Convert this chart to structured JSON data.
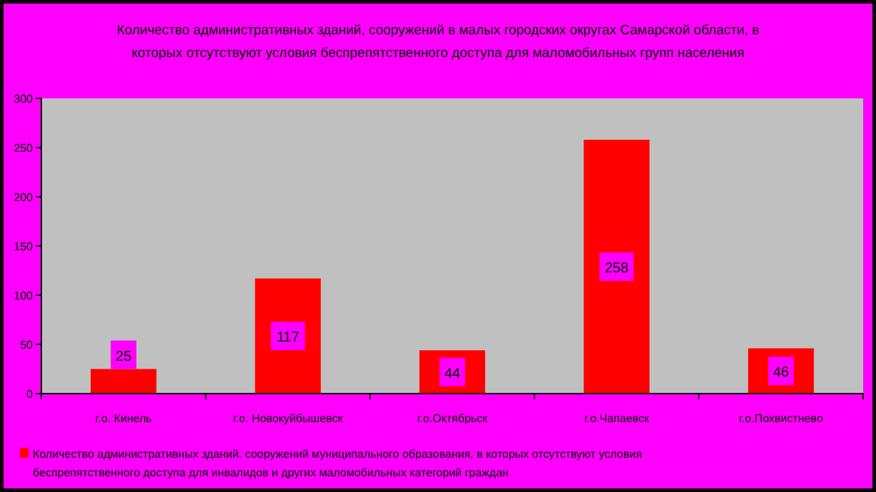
{
  "chart_data": {
    "type": "bar",
    "title": "Количество административных зданий, сооружений в малых городских округах Самарской области, в которых отсутствуют условия беспрепятственного доступа для маломобильных групп населения",
    "categories": [
      "г.о. Кинель",
      "г.о. Новокуйбышевск",
      "г.о.Октябрьск",
      "г.о.Чапаевск",
      "г.о.Похвистнево"
    ],
    "series": [
      {
        "name": "Количество административных зданий, сооружений муниципального образования, в которых отсутствуют условия беспрепятственного доступа для инвалидов и других маломобильных категорий граждан",
        "color": "#ff0000",
        "values": [
          25,
          117,
          44,
          258,
          46
        ]
      }
    ],
    "ylim": [
      0,
      300
    ],
    "yticks": [
      0,
      50,
      100,
      150,
      200,
      250,
      300
    ],
    "grid": false,
    "legend": "bottom",
    "data_labels": true
  }
}
